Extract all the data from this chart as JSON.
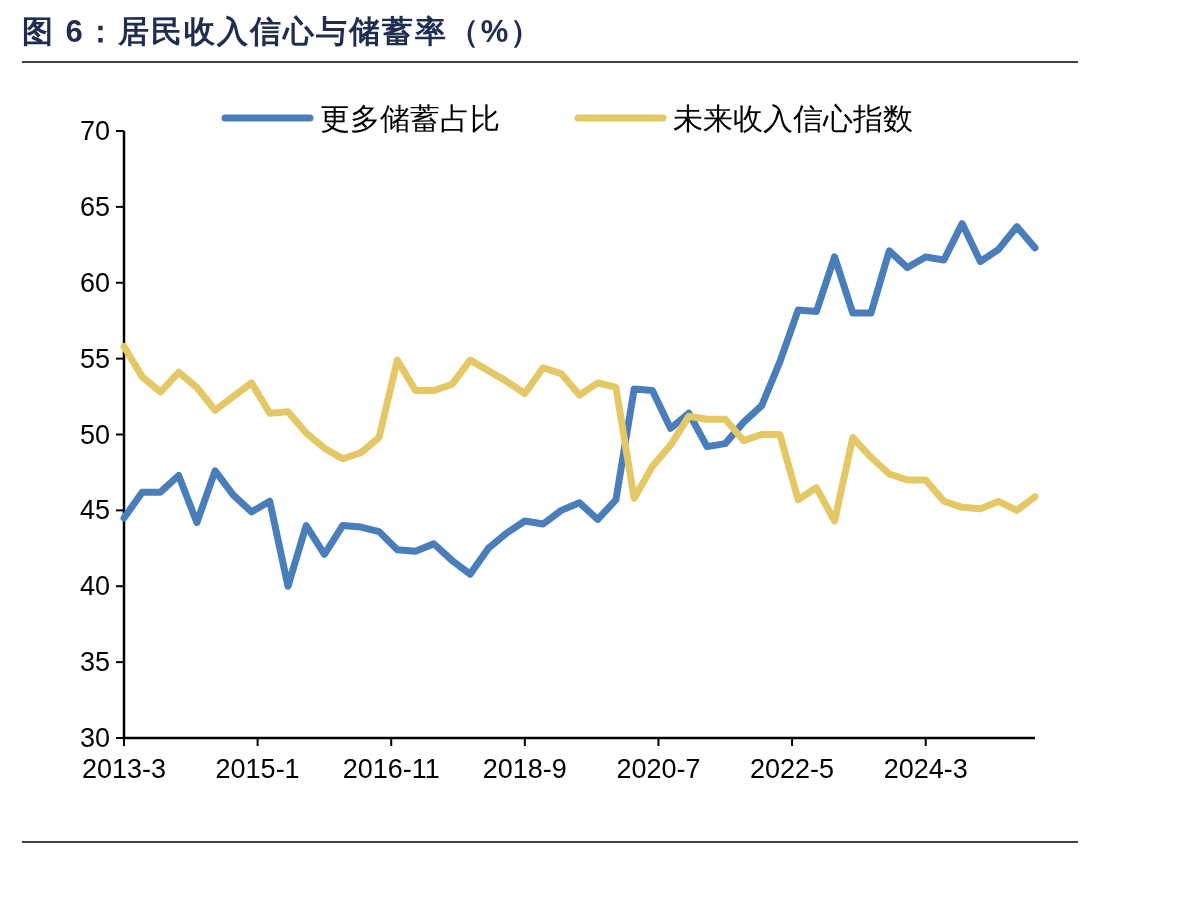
{
  "chart_data": {
    "type": "line",
    "title": "图 6：居民收入信心与储蓄率（%）",
    "x": [
      "2013-03",
      "2013-06",
      "2013-09",
      "2013-12",
      "2014-03",
      "2014-06",
      "2014-09",
      "2014-12",
      "2015-03",
      "2015-06",
      "2015-09",
      "2015-12",
      "2016-03",
      "2016-06",
      "2016-09",
      "2016-12",
      "2017-03",
      "2017-06",
      "2017-09",
      "2017-12",
      "2018-03",
      "2018-06",
      "2018-09",
      "2018-12",
      "2019-03",
      "2019-06",
      "2019-09",
      "2019-12",
      "2020-03",
      "2020-06",
      "2020-09",
      "2020-12",
      "2021-03",
      "2021-06",
      "2021-09",
      "2021-12",
      "2022-03",
      "2022-06",
      "2022-09",
      "2022-12",
      "2023-03",
      "2023-06",
      "2023-09",
      "2023-12",
      "2024-03",
      "2024-06",
      "2024-09",
      "2024-12",
      "2025-03",
      "2025-06",
      "2025-09"
    ],
    "series": [
      {
        "name": "更多储蓄占比",
        "color": "#4a7ebb",
        "values": [
          44.5,
          46.2,
          46.2,
          47.3,
          44.2,
          47.6,
          46.0,
          44.9,
          45.6,
          40.0,
          44.0,
          42.1,
          44.0,
          43.9,
          43.6,
          42.4,
          42.3,
          42.8,
          41.7,
          40.8,
          42.5,
          43.5,
          44.3,
          44.1,
          45.0,
          45.5,
          44.4,
          45.7,
          53.0,
          52.9,
          50.4,
          51.4,
          49.2,
          49.4,
          50.8,
          51.9,
          54.8,
          58.2,
          58.1,
          61.7,
          58.0,
          58.0,
          62.1,
          61.0,
          61.7,
          61.5,
          63.9,
          61.4,
          62.2,
          63.7,
          62.3
        ]
      },
      {
        "name": "未来收入信心指数",
        "color": "#e4c866",
        "values": [
          55.8,
          53.8,
          52.8,
          54.1,
          53.1,
          51.6,
          52.5,
          53.4,
          51.4,
          51.5,
          50.1,
          49.1,
          48.4,
          48.8,
          49.8,
          54.9,
          52.9,
          52.9,
          53.3,
          54.9,
          54.2,
          53.5,
          52.7,
          54.4,
          54.0,
          52.6,
          53.4,
          53.1,
          45.8,
          47.9,
          49.3,
          51.2,
          51.0,
          51.0,
          49.6,
          50.0,
          50.0,
          45.7,
          46.5,
          44.3,
          49.8,
          48.5,
          47.4,
          47.0,
          47.0,
          45.6,
          45.2,
          45.1,
          45.6,
          45.0,
          45.9
        ]
      }
    ],
    "xlim": [
      "2013-03",
      "2025-09"
    ],
    "xticks": [
      {
        "value": "2013-03",
        "label": "2013-3"
      },
      {
        "value": "2015-01",
        "label": "2015-1"
      },
      {
        "value": "2016-11",
        "label": "2016-11"
      },
      {
        "value": "2018-09",
        "label": "2018-9"
      },
      {
        "value": "2020-07",
        "label": "2020-7"
      },
      {
        "value": "2022-05",
        "label": "2022-5"
      },
      {
        "value": "2024-03",
        "label": "2024-3"
      }
    ],
    "ylim": [
      30,
      70
    ],
    "yticks": [
      30,
      35,
      40,
      45,
      50,
      55,
      60,
      65,
      70
    ],
    "grid": false,
    "legend": "top",
    "marker": "none",
    "line_style": "solid"
  }
}
